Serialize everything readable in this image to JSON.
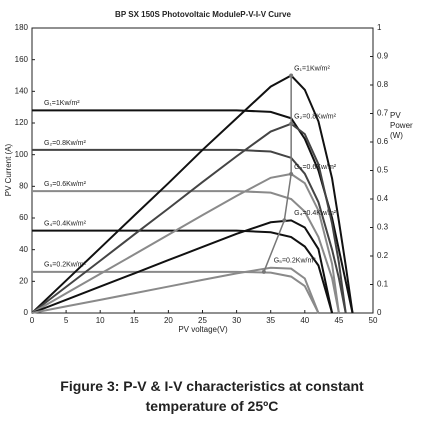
{
  "chart_data": {
    "type": "line",
    "title": "BP SX 150S Photovoltaic ModuleP-V-I-V Curve",
    "x_label": "PV voltage(V)",
    "y_label": "PV Current (A)",
    "y2_label": [
      "PV",
      "Power",
      "(W)"
    ],
    "x": [
      0,
      5,
      10,
      15,
      20,
      25,
      30,
      35,
      38,
      40,
      42,
      44,
      45,
      46,
      47
    ],
    "series": [
      {
        "name": "G₁=1Kw/m²",
        "kind": "I-V",
        "color": "#111111",
        "values": [
          128,
          128,
          128,
          128,
          128,
          128,
          128,
          127,
          123,
          110,
          90,
          60,
          40,
          20,
          0
        ]
      },
      {
        "name": "G₂=0.8Kw/m²",
        "kind": "I-V",
        "color": "#444444",
        "values": [
          103,
          103,
          103,
          103,
          103,
          103,
          103,
          102,
          98,
          88,
          70,
          40,
          22,
          0,
          null
        ]
      },
      {
        "name": "G₃=0.6Kw/m²",
        "kind": "I-V",
        "color": "#8a8a8a",
        "values": [
          77,
          77,
          77,
          77,
          77,
          77,
          77,
          76,
          72,
          64,
          48,
          22,
          0,
          null,
          null
        ]
      },
      {
        "name": "G₄=0.4Kw/m²",
        "kind": "I-V",
        "color": "#111111",
        "values": [
          52,
          52,
          52,
          52,
          52,
          52,
          52,
          51,
          48,
          42,
          30,
          0,
          null,
          null,
          null
        ]
      },
      {
        "name": "G₅=0.2Kw/m²",
        "kind": "I-V",
        "color": "#8a8a8a",
        "values": [
          26,
          26,
          26,
          26,
          26,
          26,
          26,
          25.5,
          23,
          17,
          0,
          null,
          null,
          null,
          null
        ]
      },
      {
        "name": "G₁=1Kw/m²",
        "kind": "P-V",
        "color": "#111111",
        "values": [
          0,
          20.5,
          41,
          61.6,
          82,
          103,
          123,
          143,
          150,
          141,
          121,
          85,
          58,
          30,
          0
        ]
      },
      {
        "name": "G₂=0.8Kw/m²",
        "kind": "P-V",
        "color": "#444444",
        "values": [
          0,
          16.5,
          33,
          49.6,
          66,
          82.7,
          99,
          114.6,
          119.5,
          113,
          94,
          56.5,
          31.8,
          0,
          null
        ]
      },
      {
        "name": "G₃=0.6Kw/m²",
        "kind": "P-V",
        "color": "#8a8a8a",
        "values": [
          0,
          12.4,
          24.7,
          37,
          49.4,
          61.8,
          74,
          85.4,
          87.8,
          82,
          64.7,
          31,
          0,
          null,
          null
        ]
      },
      {
        "name": "G₄=0.4Kw/m²",
        "kind": "P-V",
        "color": "#111111",
        "values": [
          0,
          8.3,
          16.7,
          25,
          33.4,
          41.7,
          50,
          57.3,
          58.5,
          54,
          40.4,
          0,
          null,
          null,
          null
        ]
      },
      {
        "name": "G₅=0.2Kw/m²",
        "kind": "P-V",
        "color": "#8a8a8a",
        "values": [
          0,
          4.2,
          8.3,
          12.5,
          16.7,
          20.9,
          25,
          28.6,
          28,
          21.8,
          0,
          null,
          null,
          null,
          null
        ]
      }
    ],
    "mpp_line": {
      "color": "#777777",
      "x": [
        38,
        38,
        38,
        37,
        34
      ],
      "values": [
        150,
        119.5,
        87.8,
        58.5,
        26
      ]
    },
    "xlim": [
      0,
      50
    ],
    "xticks": [
      0,
      5,
      10,
      15,
      20,
      25,
      30,
      35,
      40,
      45,
      50
    ],
    "ylim": [
      0,
      180
    ],
    "yticks": [
      0,
      20,
      40,
      60,
      80,
      100,
      120,
      140,
      160,
      180
    ],
    "y2lim": [
      0,
      1
    ],
    "y2ticks": [
      0,
      0.1,
      0.2,
      0.3,
      0.4,
      0.5,
      0.6,
      0.7,
      0.8,
      0.9,
      1
    ],
    "grid": false
  },
  "caption": [
    "Figure 3: P-V & I-V characteristics at constant",
    "temperature of 25ºC"
  ]
}
